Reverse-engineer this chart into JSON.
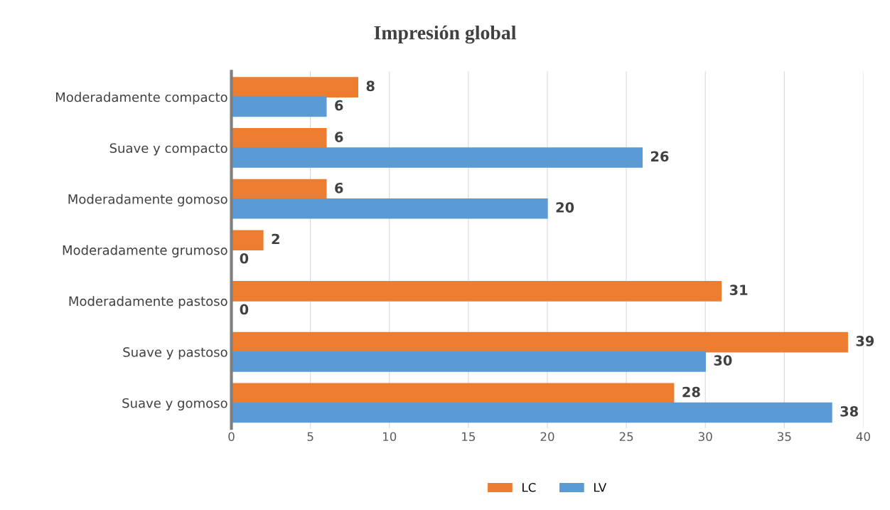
{
  "chart_data": {
    "type": "bar",
    "orientation": "horizontal",
    "title": "Impresión global",
    "categories": [
      "Moderadamente compacto",
      "Suave y compacto",
      "Moderadamente gomoso",
      "Moderadamente grumoso",
      "Moderadamente pastoso",
      "Suave y pastoso",
      "Suave y gomoso"
    ],
    "series": [
      {
        "name": "LC",
        "color": "#ed7d31",
        "values": [
          8,
          6,
          6,
          2,
          31,
          39,
          28
        ]
      },
      {
        "name": "LV",
        "color": "#5b9bd5",
        "values": [
          6,
          26,
          20,
          0,
          0,
          30,
          38
        ]
      }
    ],
    "xlim": [
      0,
      40
    ],
    "xticks": [
      0,
      5,
      10,
      15,
      20,
      25,
      30,
      35,
      40
    ],
    "grid": "x",
    "legend": "bottom",
    "data_labels": true
  }
}
